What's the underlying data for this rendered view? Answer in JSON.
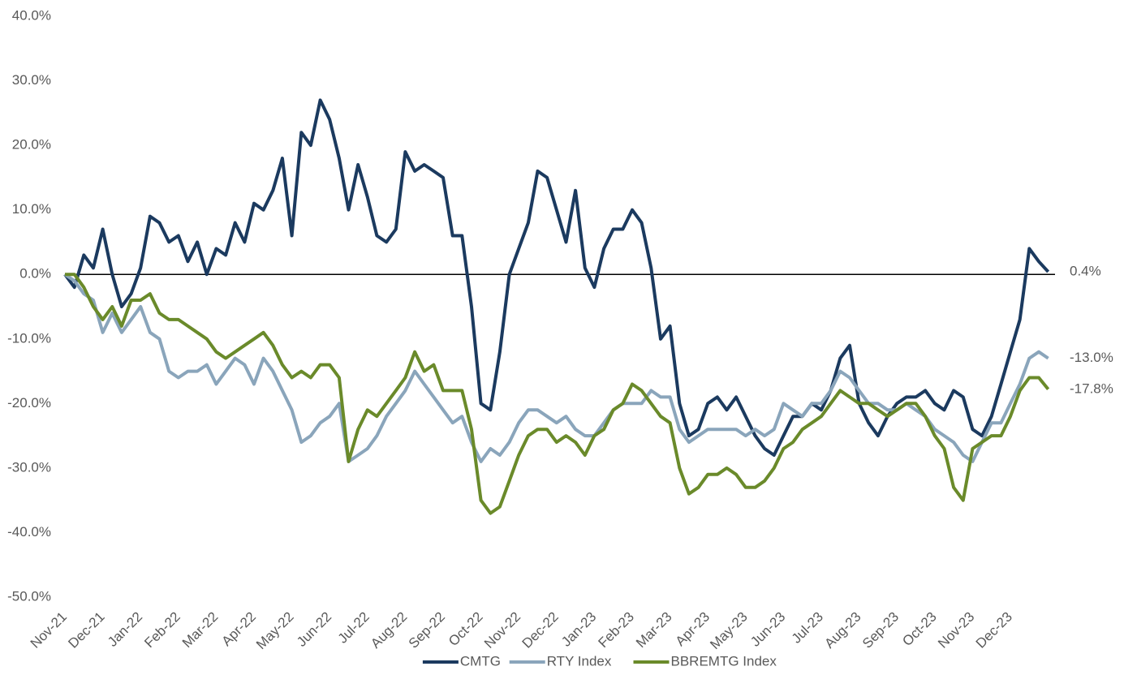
{
  "chart_data": {
    "type": "line",
    "categories": [
      "Nov-21",
      null,
      null,
      null,
      "Dec-21",
      null,
      null,
      null,
      "Jan-22",
      null,
      null,
      null,
      "Feb-22",
      null,
      null,
      null,
      "Mar-22",
      null,
      null,
      null,
      "Apr-22",
      null,
      null,
      null,
      "May-22",
      null,
      null,
      null,
      "Jun-22",
      null,
      null,
      null,
      "Jul-22",
      null,
      null,
      null,
      "Aug-22",
      null,
      null,
      null,
      "Sep-22",
      null,
      null,
      null,
      "Oct-22",
      null,
      null,
      null,
      "Nov-22",
      null,
      null,
      null,
      "Dec-22",
      null,
      null,
      null,
      "Jan-23",
      null,
      null,
      null,
      "Feb-23",
      null,
      null,
      null,
      "Mar-23",
      null,
      null,
      null,
      "Apr-23",
      null,
      null,
      null,
      "May-23",
      null,
      null,
      null,
      "Jun-23",
      null,
      null,
      null,
      "Jul-23",
      null,
      null,
      null,
      "Aug-23",
      null,
      null,
      null,
      "Sep-23",
      null,
      null,
      null,
      "Oct-23",
      null,
      null,
      null,
      "Nov-23",
      null,
      null,
      null,
      "Dec-23",
      null,
      null,
      null,
      null
    ],
    "series": [
      {
        "name": "CMTG",
        "color": "#1b3a5f",
        "end_label": "0.4%",
        "values": [
          0,
          -2,
          3,
          1,
          7,
          0,
          -5,
          -3,
          1,
          9,
          8,
          5,
          6,
          2,
          5,
          0,
          4,
          3,
          8,
          5,
          11,
          10,
          13,
          18,
          6,
          22,
          20,
          27,
          24,
          18,
          10,
          17,
          12,
          6,
          5,
          7,
          19,
          16,
          17,
          16,
          15,
          6,
          6,
          -5,
          -20,
          -21,
          -12,
          0,
          4,
          8,
          16,
          15,
          10,
          5,
          13,
          1,
          -2,
          4,
          7,
          7,
          10,
          8,
          1,
          -10,
          -8,
          -20,
          -25,
          -24,
          -20,
          -19,
          -21,
          -19,
          -22,
          -25,
          -27,
          -28,
          -25,
          -22,
          -22,
          -20,
          -21,
          -18,
          -13,
          -11,
          -20,
          -23,
          -25,
          -22,
          -20,
          -19,
          -19,
          -18,
          -20,
          -21,
          -18,
          -19,
          -24,
          -25,
          -22,
          -17,
          -12,
          -7,
          4,
          2,
          0.4
        ]
      },
      {
        "name": "RTY Index",
        "color": "#8aa5bb",
        "end_label": "-13.0%",
        "values": [
          0,
          -1,
          -3,
          -4,
          -9,
          -6,
          -9,
          -7,
          -5,
          -9,
          -10,
          -15,
          -16,
          -15,
          -15,
          -14,
          -17,
          -15,
          -13,
          -14,
          -17,
          -13,
          -15,
          -18,
          -21,
          -26,
          -25,
          -23,
          -22,
          -20,
          -29,
          -28,
          -27,
          -25,
          -22,
          -20,
          -18,
          -15,
          -17,
          -19,
          -21,
          -23,
          -22,
          -26,
          -29,
          -27,
          -28,
          -26,
          -23,
          -21,
          -21,
          -22,
          -23,
          -22,
          -24,
          -25,
          -25,
          -23,
          -21,
          -20,
          -20,
          -20,
          -18,
          -19,
          -19,
          -24,
          -26,
          -25,
          -24,
          -24,
          -24,
          -24,
          -25,
          -24,
          -25,
          -24,
          -20,
          -21,
          -22,
          -20,
          -20,
          -18,
          -15,
          -16,
          -18,
          -20,
          -20,
          -21,
          -21,
          -20,
          -21,
          -22,
          -24,
          -25,
          -26,
          -28,
          -29,
          -26,
          -23,
          -23,
          -20,
          -17,
          -13,
          -12,
          -13.0
        ]
      },
      {
        "name": "BBREMTG Index",
        "color": "#6a8a2a",
        "end_label": "-17.8%",
        "values": [
          0,
          0,
          -2,
          -5,
          -7,
          -5,
          -8,
          -4,
          -4,
          -3,
          -6,
          -7,
          -7,
          -8,
          -9,
          -10,
          -12,
          -13,
          -12,
          -11,
          -10,
          -9,
          -11,
          -14,
          -16,
          -15,
          -16,
          -14,
          -14,
          -16,
          -29,
          -24,
          -21,
          -22,
          -20,
          -18,
          -16,
          -12,
          -15,
          -14,
          -18,
          -18,
          -18,
          -24,
          -35,
          -37,
          -36,
          -32,
          -28,
          -25,
          -24,
          -24,
          -26,
          -25,
          -26,
          -28,
          -25,
          -24,
          -21,
          -20,
          -17,
          -18,
          -20,
          -22,
          -23,
          -30,
          -34,
          -33,
          -31,
          -31,
          -30,
          -31,
          -33,
          -33,
          -32,
          -30,
          -27,
          -26,
          -24,
          -23,
          -22,
          -20,
          -18,
          -19,
          -20,
          -20,
          -21,
          -22,
          -21,
          -20,
          -20,
          -22,
          -25,
          -27,
          -33,
          -35,
          -27,
          -26,
          -25,
          -25,
          -22,
          -18,
          -16,
          -16,
          -17.8
        ]
      }
    ],
    "ylim": [
      -50,
      40
    ],
    "yticks": [
      {
        "value": -50,
        "label": "-50.0%"
      },
      {
        "value": -40,
        "label": "-40.0%"
      },
      {
        "value": -30,
        "label": "-30.0%"
      },
      {
        "value": -20,
        "label": "-20.0%"
      },
      {
        "value": -10,
        "label": "-10.0%"
      },
      {
        "value": 0,
        "label": "0.0%"
      },
      {
        "value": 10,
        "label": "10.0%"
      },
      {
        "value": 20,
        "label": "20.0%"
      },
      {
        "value": 30,
        "label": "30.0%"
      },
      {
        "value": 40,
        "label": "40.0%"
      }
    ],
    "grid": false,
    "zero_line": true,
    "legend": "bottom"
  }
}
